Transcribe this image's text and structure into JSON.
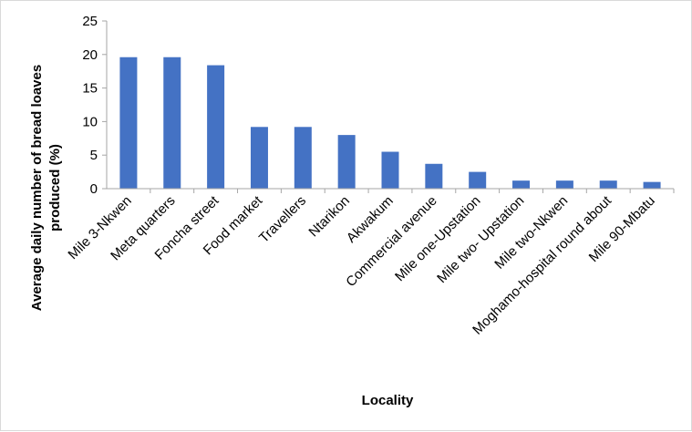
{
  "chart_data": {
    "type": "bar",
    "title": "",
    "xlabel": "Locality",
    "ylabel_lines": [
      "Average daily number of  bread loaves",
      "produced (%)"
    ],
    "ylim": [
      0,
      25
    ],
    "yticks": [
      0,
      5,
      10,
      15,
      20,
      25
    ],
    "grid": false,
    "legend": "none",
    "bar_color": "#4472c4",
    "categories": [
      "Mile 3-Nkwen",
      "Meta quarters",
      "Foncha street",
      "Food market",
      "Travellers",
      "Ntarikon",
      "Akwakum",
      "Commercial avenue",
      "Mile one-Upstation",
      "Mile two- Upstation",
      "Mile two-Nkwen",
      "Moghamo-hospital round about",
      "Mile 90-Mbatu"
    ],
    "values": [
      19.6,
      19.6,
      18.4,
      9.2,
      9.2,
      8.0,
      5.5,
      3.7,
      2.5,
      1.2,
      1.2,
      1.2,
      1.0
    ]
  }
}
